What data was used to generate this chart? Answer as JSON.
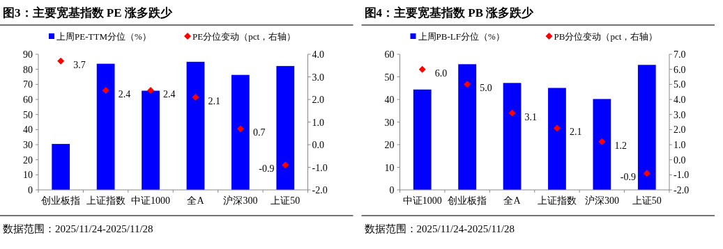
{
  "chart_data": [
    {
      "type": "bar",
      "title": "图3：主要宽基指数 PE 涨多跌少",
      "categories": [
        "创业板指",
        "上证指数",
        "中证1000",
        "全A",
        "沪深300",
        "上证50"
      ],
      "series": [
        {
          "name": "上周PE-TTM分位（%）",
          "color": "#0000ff",
          "values": [
            30.5,
            83.7,
            65.8,
            85.0,
            76.3,
            82.2
          ]
        },
        {
          "name": "PE分位变动（pct，右轴）",
          "type": "scatter",
          "axis": "y2",
          "marker": "diamond",
          "color": "#ff0000",
          "values": [
            3.7,
            2.4,
            2.4,
            2.1,
            0.7,
            -0.9
          ],
          "value_labels": [
            "3.7",
            "2.4",
            "2.4",
            "2.1",
            "0.7",
            "-0.9"
          ]
        }
      ],
      "ylim": [
        0,
        90
      ],
      "yticks": [
        0,
        10,
        20,
        30,
        40,
        50,
        60,
        70,
        80,
        90
      ],
      "y2lim": [
        -2,
        4
      ],
      "y2ticks": [
        {
          "value": -2,
          "label": "-2.0"
        },
        {
          "value": -1,
          "label": "-1.0"
        },
        {
          "value": 0,
          "label": "0.0"
        },
        {
          "value": 1,
          "label": "1.0"
        },
        {
          "value": 2,
          "label": "2.0"
        },
        {
          "value": 3,
          "label": "3.0"
        },
        {
          "value": 4,
          "label": "4.0"
        }
      ],
      "legend": "top",
      "annotations": [
        "数据范围：2025/11/24-2025/11/28"
      ]
    },
    {
      "type": "bar",
      "title": "图4：主要宽基指数 PB 涨多跌少",
      "categories": [
        "中证1000",
        "创业板指",
        "全A",
        "上证指数",
        "沪深300",
        "上证50"
      ],
      "series": [
        {
          "name": "上周PB-LF分位（%）",
          "color": "#0000ff",
          "values": [
            44.4,
            55.6,
            47.3,
            45.1,
            40.2,
            55.3
          ]
        },
        {
          "name": "PB分位变动（pct，右轴）",
          "type": "scatter",
          "axis": "y2",
          "marker": "diamond",
          "color": "#ff0000",
          "values": [
            6.0,
            5.0,
            3.1,
            2.1,
            1.2,
            -0.9
          ],
          "value_labels": [
            "6.0",
            "5.0",
            "3.1",
            "2.1",
            "1.2",
            "-0.9"
          ]
        }
      ],
      "ylim": [
        0,
        60
      ],
      "yticks": [
        0,
        10,
        20,
        30,
        40,
        50,
        60
      ],
      "y2lim": [
        -2,
        7
      ],
      "y2ticks": [
        {
          "value": -2,
          "label": "-2.0"
        },
        {
          "value": -1,
          "label": "-1.0"
        },
        {
          "value": 0,
          "label": "0.0"
        },
        {
          "value": 1,
          "label": "1.0"
        },
        {
          "value": 2,
          "label": "2.0"
        },
        {
          "value": 3,
          "label": "3.0"
        },
        {
          "value": 4,
          "label": "4.0"
        },
        {
          "value": 5,
          "label": "5.0"
        },
        {
          "value": 6,
          "label": "6.0"
        },
        {
          "value": 7,
          "label": "7.0"
        }
      ],
      "legend": "top",
      "annotations": [
        "数据范围：2025/11/24-2025/11/28"
      ]
    }
  ]
}
